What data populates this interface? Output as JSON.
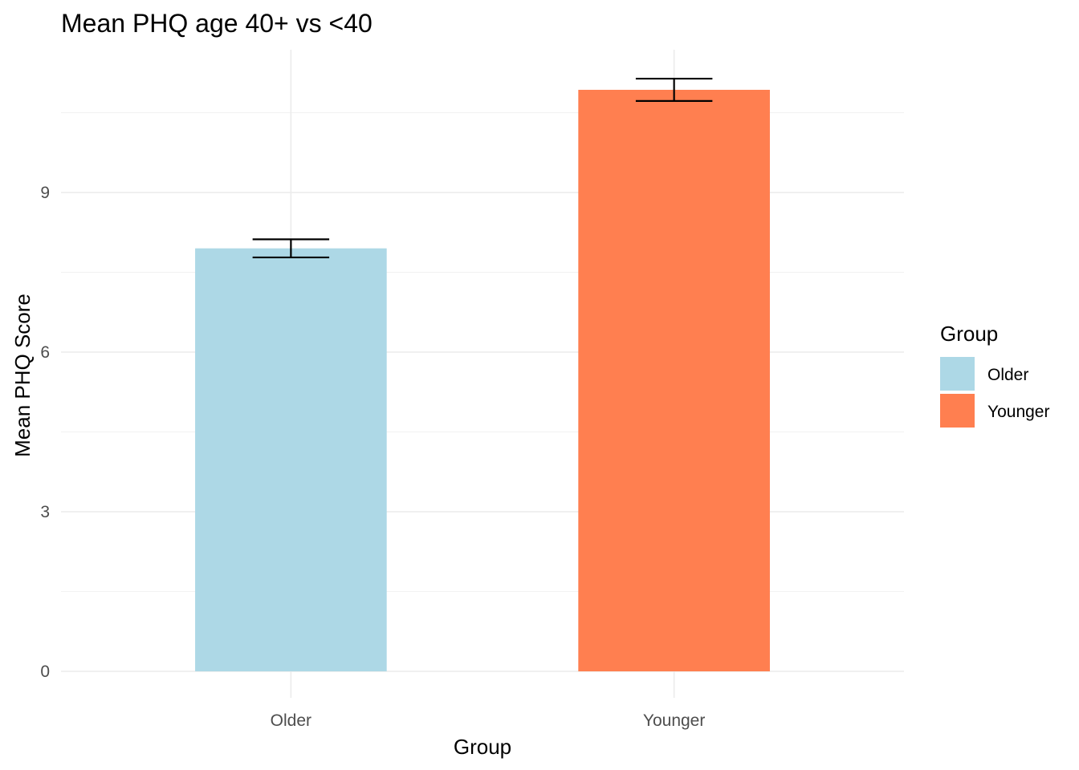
{
  "chart_data": {
    "type": "bar",
    "title": "Mean PHQ age 40+ vs <40",
    "xlabel": "Group",
    "ylabel": "Mean PHQ Score",
    "categories": [
      "Older",
      "Younger"
    ],
    "values": [
      7.95,
      10.93
    ],
    "error_low": [
      7.78,
      10.72
    ],
    "error_high": [
      8.12,
      11.14
    ],
    "colors": [
      "#ADD8E6",
      "#FF7F50"
    ],
    "ylim": [
      0,
      11.7
    ],
    "yticks": [
      0,
      3,
      6,
      9
    ],
    "grid": true,
    "legend": {
      "title": "Group",
      "position": "right",
      "entries": [
        {
          "label": "Older",
          "color": "#ADD8E6"
        },
        {
          "label": "Younger",
          "color": "#FF7F50"
        }
      ]
    }
  }
}
